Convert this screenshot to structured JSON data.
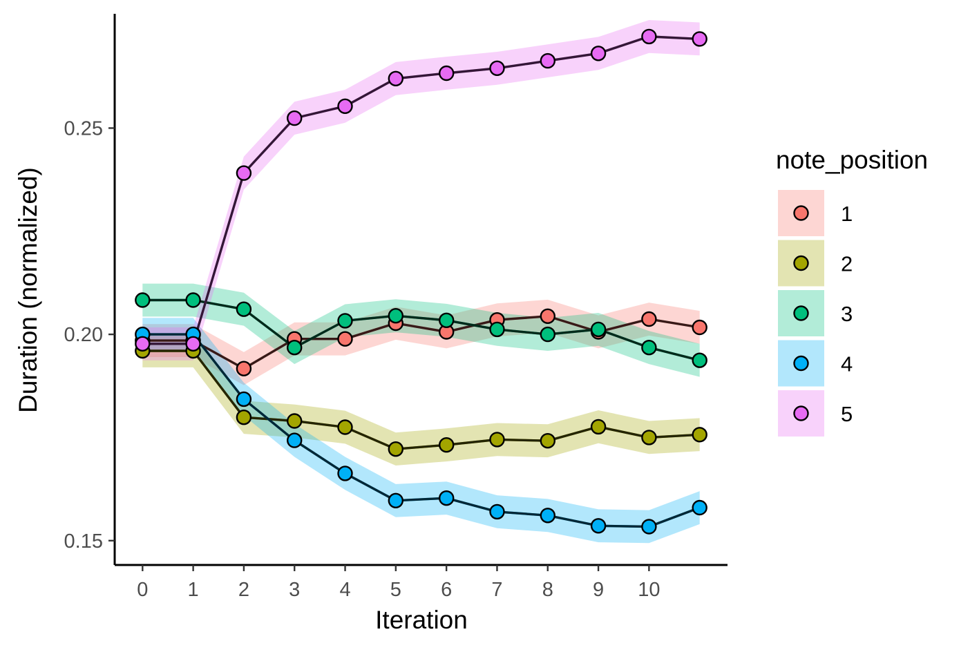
{
  "chart_data": {
    "type": "line",
    "xlabel": "Iteration",
    "ylabel": "Duration (normalized)",
    "x": [
      0,
      1,
      2,
      3,
      4,
      5,
      6,
      7,
      8,
      9,
      10,
      11
    ],
    "x_tick_values": [
      0,
      1,
      2,
      3,
      4,
      5,
      6,
      7,
      8,
      9,
      10
    ],
    "x_tick_labels": [
      "0",
      "1",
      "2",
      "3",
      "4",
      "5",
      "6",
      "7",
      "8",
      "9",
      "10"
    ],
    "xlim": [
      -0.55,
      11.55
    ],
    "y_tick_values": [
      0.15,
      0.2,
      0.25
    ],
    "y_tick_labels": [
      "0.15",
      "0.20",
      "0.25"
    ],
    "ylim": [
      0.1441,
      0.2777
    ],
    "grid": false,
    "legend": {
      "title": "note_position",
      "position": "right"
    },
    "band_halfwidth": 0.004,
    "series": [
      {
        "name": "1",
        "color": "#F8766D",
        "values": [
          0.1985,
          0.1985,
          0.1917,
          0.1989,
          0.1989,
          0.2027,
          0.2006,
          0.2035,
          0.2044,
          0.2006,
          0.2037,
          0.2017
        ]
      },
      {
        "name": "2",
        "color": "#A3A500",
        "values": [
          0.196,
          0.196,
          0.1799,
          0.179,
          0.1775,
          0.1722,
          0.1732,
          0.1745,
          0.1742,
          0.1776,
          0.175,
          0.1757
        ]
      },
      {
        "name": "3",
        "color": "#00BF7D",
        "values": [
          0.2083,
          0.2083,
          0.2061,
          0.1968,
          0.2033,
          0.2045,
          0.2034,
          0.2012,
          0.2,
          0.2012,
          0.1968,
          0.1937
        ]
      },
      {
        "name": "4",
        "color": "#00B0F6",
        "values": [
          0.2,
          0.2,
          0.1843,
          0.1743,
          0.1663,
          0.1597,
          0.1603,
          0.157,
          0.1561,
          0.1536,
          0.1534,
          0.158
        ]
      },
      {
        "name": "5",
        "color": "#E76BF3",
        "values": [
          0.1977,
          0.1977,
          0.2391,
          0.2524,
          0.2553,
          0.262,
          0.2633,
          0.2645,
          0.2663,
          0.2681,
          0.2722,
          0.2716
        ]
      }
    ]
  }
}
